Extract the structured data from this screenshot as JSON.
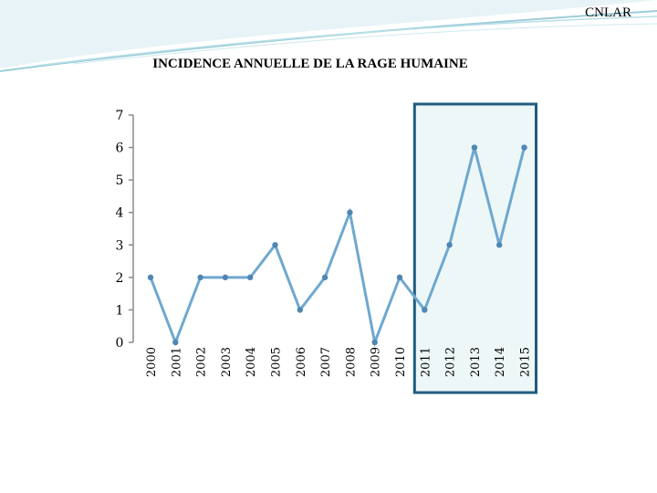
{
  "header": {
    "label": "CNLAR"
  },
  "colors": {
    "line": "#6fa8cf",
    "line_dark": "#4f86b4",
    "marker": "#4f86b4",
    "highlight_border": "#1f5c80",
    "highlight_fill": "#eef7f8",
    "axis": "#8a8a8a"
  },
  "chart_data": {
    "type": "line",
    "title": "INCIDENCE ANNUELLE DE LA RAGE HUMAINE",
    "xlabel": "",
    "ylabel": "",
    "categories": [
      "2000",
      "2001",
      "2002",
      "2003",
      "2004",
      "2005",
      "2006",
      "2007",
      "2008",
      "2009",
      "2010",
      "2011",
      "2012",
      "2013",
      "2014",
      "2015"
    ],
    "series": [
      {
        "values": [
          2,
          0,
          2,
          2,
          2,
          3,
          1,
          2,
          4,
          0,
          2,
          1,
          3,
          6,
          3,
          6
        ]
      }
    ],
    "ylim": [
      0,
      7
    ],
    "yticks": [
      0,
      1,
      2,
      3,
      4,
      5,
      6,
      7
    ],
    "highlight_range": [
      "2011",
      "2015"
    ],
    "grid": false,
    "legend": "none"
  }
}
